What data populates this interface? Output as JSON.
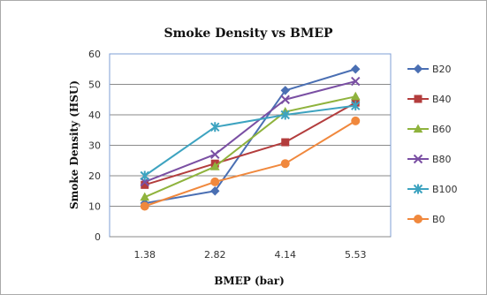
{
  "chart_data": {
    "type": "line",
    "title": "Smoke Density vs BMEP",
    "xlabel": "BMEP (bar)",
    "ylabel": "Smoke Density (HSU)",
    "categories": [
      "1.38",
      "2.82",
      "4.14",
      "5.53"
    ],
    "ylim": [
      0,
      60
    ],
    "yticks": [
      0,
      10,
      20,
      30,
      40,
      50,
      60
    ],
    "grid": "horizontal",
    "legend_position": "right",
    "series": [
      {
        "name": "B20",
        "values": [
          11,
          15,
          48,
          55
        ],
        "color": "#4a6fb3",
        "marker": "diamond"
      },
      {
        "name": "B40",
        "values": [
          17,
          24,
          31,
          44
        ],
        "color": "#b33d3d",
        "marker": "square"
      },
      {
        "name": "B60",
        "values": [
          13,
          23,
          41,
          46
        ],
        "color": "#8fb33d",
        "marker": "triangle"
      },
      {
        "name": "B80",
        "values": [
          18,
          27,
          45,
          51
        ],
        "color": "#7a4fa3",
        "marker": "x"
      },
      {
        "name": "B100",
        "values": [
          20,
          36,
          40,
          43
        ],
        "color": "#3da3c0",
        "marker": "asterisk"
      },
      {
        "name": "B0",
        "values": [
          10,
          18,
          24,
          38
        ],
        "color": "#f0883d",
        "marker": "circle"
      }
    ]
  }
}
